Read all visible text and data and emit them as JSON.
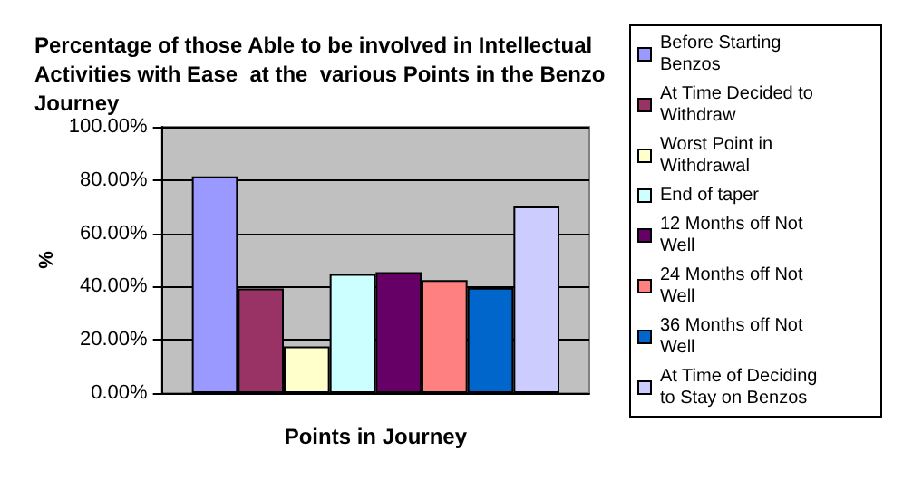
{
  "chart_data": {
    "type": "bar",
    "title": "Percentage of those Able to be involved in Intellectual Activities with Ease  at the  various Points in the Benzo Journey",
    "xlabel": "Points in Journey",
    "ylabel": "%",
    "categories": [
      null
    ],
    "series": [
      {
        "name": "Before Starting Benzos",
        "color": "#9999ff",
        "values": [
          81.4
        ]
      },
      {
        "name": "At Time Decided to Withdraw",
        "color": "#993366",
        "values": [
          39.3
        ]
      },
      {
        "name": "Worst Point in Withdrawal",
        "color": "#ffffcc",
        "values": [
          17.5
        ]
      },
      {
        "name": "End of taper",
        "color": "#ccffff",
        "values": [
          44.7
        ]
      },
      {
        "name": "12 Months off Not Well",
        "color": "#660066",
        "values": [
          45.4
        ]
      },
      {
        "name": "24 Months off Not Well",
        "color": "#ff8080",
        "values": [
          42.4
        ]
      },
      {
        "name": "36 Months off Not Well",
        "color": "#0066cc",
        "values": [
          39.5
        ]
      },
      {
        "name": "At Time of Deciding to Stay on Benzos",
        "color": "#ccccff",
        "values": [
          70.1
        ]
      }
    ],
    "ylim": [
      0,
      100
    ],
    "yticks": [
      {
        "value": 0,
        "label": "0.00%"
      },
      {
        "value": 20,
        "label": "20.00%"
      },
      {
        "value": 40,
        "label": "40.00%"
      },
      {
        "value": 60,
        "label": "60.00%"
      },
      {
        "value": 80,
        "label": "80.00%"
      },
      {
        "value": 100,
        "label": "100.00%"
      }
    ],
    "grid": "y",
    "legend": "right"
  }
}
